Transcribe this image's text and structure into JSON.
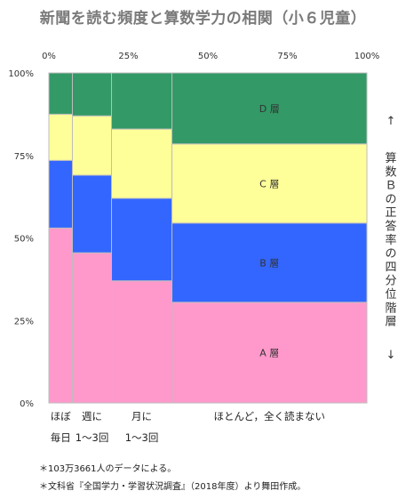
{
  "title": "新聞を読む頻度と算数学力の相関（小６児童）",
  "chart_data": {
    "type": "mosaic",
    "x_ticks": [
      "0%",
      "25%",
      "50%",
      "75%",
      "100%"
    ],
    "y_ticks": [
      "0%",
      "25%",
      "50%",
      "75%",
      "100%"
    ],
    "categories": [
      {
        "lines": [
          "ほぼ",
          "毎日"
        ],
        "width": 7.4
      },
      {
        "lines": [
          "週に",
          "1～3回"
        ],
        "width": 12.3
      },
      {
        "lines": [
          "月に",
          "1～3回"
        ],
        "width": 19.0
      },
      {
        "lines": [
          "ほとんど，全く読まない"
        ],
        "width": 61.3
      }
    ],
    "series": [
      {
        "name": "A層",
        "color": "#ff99cc",
        "values": [
          53,
          45.5,
          37,
          30.5
        ]
      },
      {
        "name": "B層",
        "color": "#3366ff",
        "values": [
          20.5,
          23.5,
          25,
          24
        ]
      },
      {
        "name": "C層",
        "color": "#ffff99",
        "values": [
          14,
          18,
          21,
          24
        ]
      },
      {
        "name": "D層",
        "color": "#339966",
        "values": [
          12.5,
          13,
          17,
          21.5
        ]
      }
    ],
    "series_labels": [
      "A 層",
      "B 層",
      "C 層",
      "D 層"
    ],
    "ylabel": "算数Ｂの正答率の四分位階層",
    "arrow_up": "↑",
    "arrow_down": "↓"
  },
  "notes": [
    "＊103万3661人のデータによる。",
    "＊文科省『全国学力・学習状況調査』（2018年度）より舞田作成。"
  ]
}
